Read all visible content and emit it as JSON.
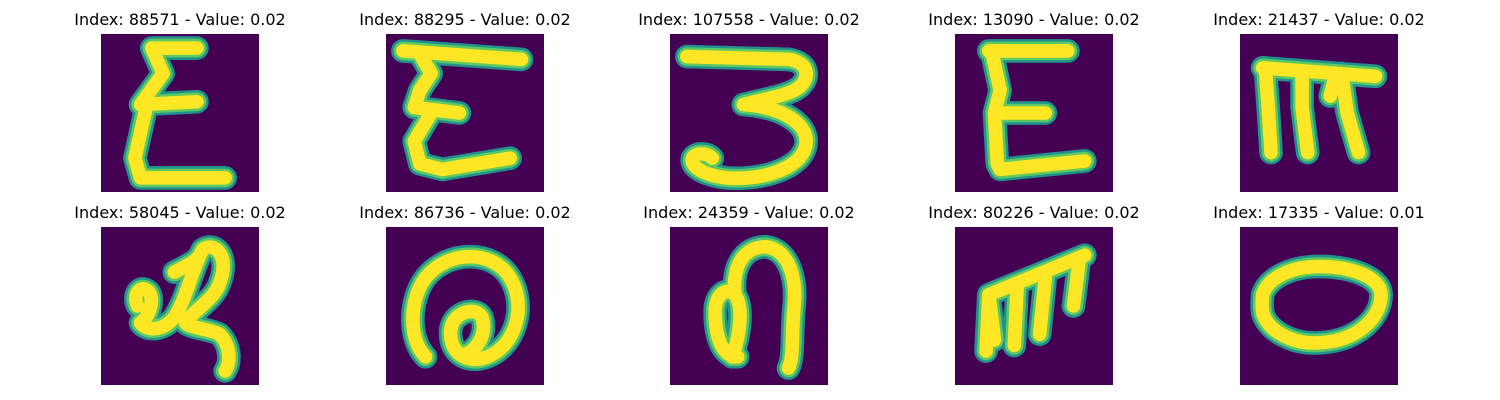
{
  "palette": {
    "background": "#440154",
    "stroke_edge": "#21918c",
    "stroke_mid": "#5ec962",
    "stroke_core": "#fde725"
  },
  "samples": [
    {
      "title": "Index: 88571 - Value: 0.02",
      "glyph": "epsilon-tall"
    },
    {
      "title": "Index: 88295 - Value: 0.02",
      "glyph": "epsilon-wide"
    },
    {
      "title": "Index: 107558 - Value: 0.02",
      "glyph": "three-curl"
    },
    {
      "title": "Index: 13090 - Value: 0.02",
      "glyph": "e-square"
    },
    {
      "title": "Index: 21437 - Value: 0.02",
      "glyph": "m-loop"
    },
    {
      "title": "Index: 58045 - Value: 0.02",
      "glyph": "loop-tail"
    },
    {
      "title": "Index: 86736 - Value: 0.02",
      "glyph": "spiral-a"
    },
    {
      "title": "Index: 24359 - Value: 0.02",
      "glyph": "loop-arch"
    },
    {
      "title": "Index: 80226 - Value: 0.02",
      "glyph": "m-slant"
    },
    {
      "title": "Index: 17335 - Value: 0.01",
      "glyph": "ellipse"
    }
  ]
}
